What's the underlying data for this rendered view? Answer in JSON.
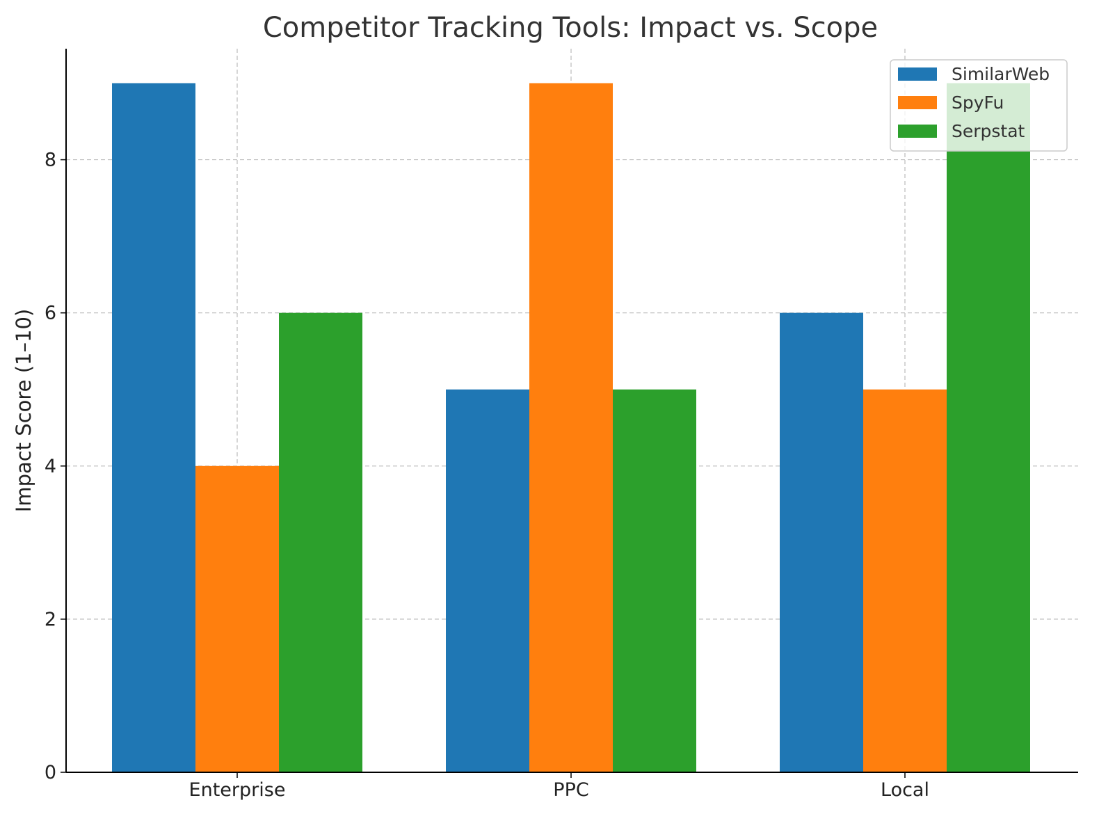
{
  "chart_data": {
    "type": "bar",
    "title": "Competitor Tracking Tools: Impact vs. Scope",
    "xlabel": "",
    "ylabel": "Impact Score (1–10)",
    "categories": [
      "Enterprise",
      "PPC",
      "Local"
    ],
    "series": [
      {
        "name": "SimilarWeb",
        "color": "#1f77b4",
        "values": [
          9,
          5,
          6
        ]
      },
      {
        "name": "SpyFu",
        "color": "#ff7f0e",
        "values": [
          4,
          9,
          5
        ]
      },
      {
        "name": "Serpstat",
        "color": "#2ca02c",
        "values": [
          6,
          5,
          9
        ]
      }
    ],
    "ylim": [
      0,
      9.45
    ],
    "yticks": [
      0,
      2,
      4,
      6,
      8
    ],
    "grid": true,
    "legend_position": "top-right"
  }
}
